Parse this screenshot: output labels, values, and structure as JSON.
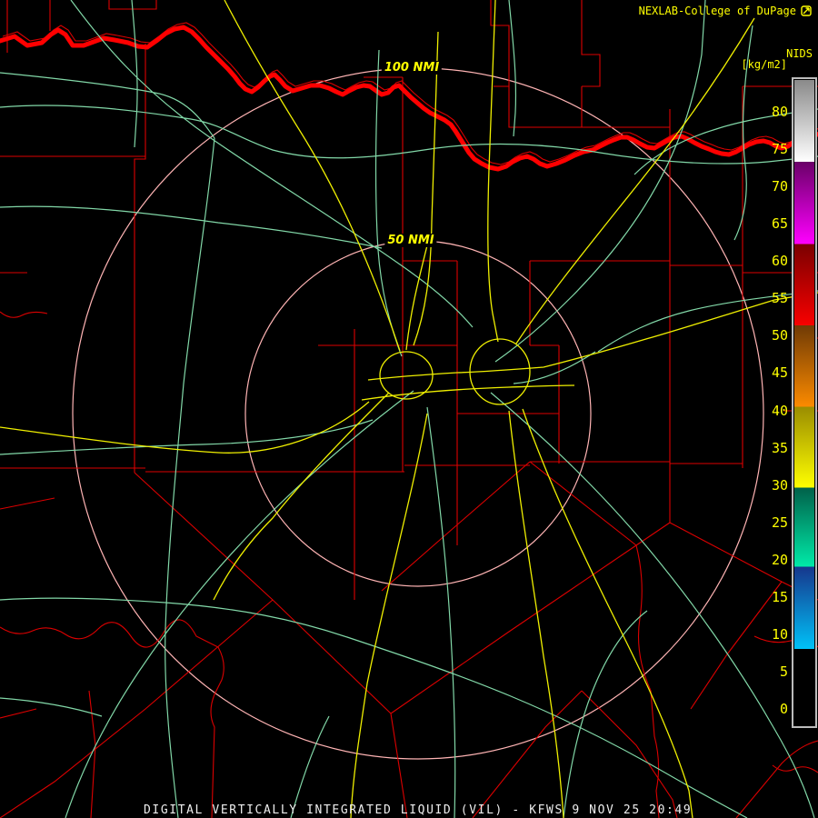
{
  "header": {
    "source_label": "NEXLAB-College of DuPage",
    "logo_icon": "cod-logo",
    "product_label": "NIDS",
    "units_label": "[kg/m2]"
  },
  "map": {
    "radar_site": "KFWS",
    "range_rings": [
      {
        "label": "100 NMI",
        "radius_nmi": 100
      },
      {
        "label": "50 NMI",
        "radius_nmi": 50
      }
    ]
  },
  "colorbar": {
    "tick_values": [
      80,
      75,
      70,
      65,
      60,
      55,
      50,
      45,
      40,
      35,
      30,
      25,
      20,
      15,
      10,
      5,
      0
    ],
    "segments": [
      {
        "name": "gray-white",
        "start_color": "#8a8a8a",
        "end_color": "#ffffff",
        "from_pct": 0,
        "to_pct": 12.7
      },
      {
        "name": "purple-magenta",
        "start_color": "#6a0068",
        "end_color": "#ff00ff",
        "from_pct": 12.7,
        "to_pct": 25.4
      },
      {
        "name": "darkred-red",
        "start_color": "#7a0000",
        "end_color": "#f80000",
        "from_pct": 25.4,
        "to_pct": 38.0
      },
      {
        "name": "brown-orange",
        "start_color": "#6f3a05",
        "end_color": "#fb8a00",
        "from_pct": 38.0,
        "to_pct": 50.6
      },
      {
        "name": "olive-yellow",
        "start_color": "#9a8c00",
        "end_color": "#ffff00",
        "from_pct": 50.6,
        "to_pct": 63.2
      },
      {
        "name": "teal-green",
        "start_color": "#00614a",
        "end_color": "#00eaa8",
        "from_pct": 63.2,
        "to_pct": 75.4
      },
      {
        "name": "navy-cyan",
        "start_color": "#16368c",
        "end_color": "#00c2f8",
        "from_pct": 75.4,
        "to_pct": 88.2
      },
      {
        "name": "black",
        "start_color": "#000000",
        "end_color": "#000000",
        "from_pct": 88.2,
        "to_pct": 100
      }
    ]
  },
  "caption": "DIGITAL VERTICALLY INTEGRATED LIQUID (VIL) - KFWS 9 NOV 25 20:49",
  "colors": {
    "background": "#000000",
    "county_line": "#dc0000",
    "river": "#ff0000",
    "road_minor": "#82d8a8",
    "road_major": "#efef00",
    "range_ring": "#ffb4b4",
    "label_yellow": "#ffff00",
    "caption_white": "#ededed"
  }
}
